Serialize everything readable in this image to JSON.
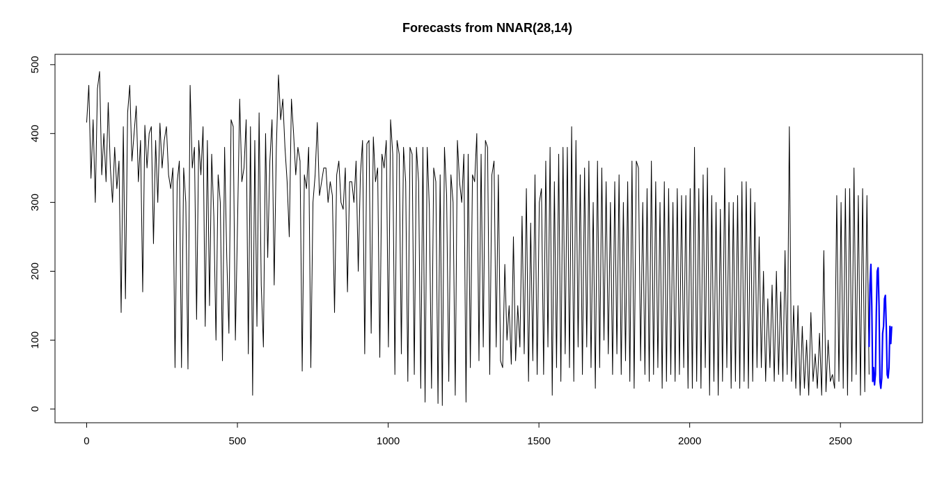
{
  "chart_data": {
    "type": "line",
    "title": "Forecasts from NNAR(28,14)",
    "xlabel": "",
    "ylabel": "",
    "xlim": [
      -105,
      2772
    ],
    "ylim": [
      -20,
      515
    ],
    "x_ticks": [
      0,
      500,
      1000,
      1500,
      2000,
      2500
    ],
    "y_ticks": [
      0,
      100,
      200,
      300,
      400,
      500
    ],
    "grid": false,
    "legend": "none",
    "series": [
      {
        "role": "observed",
        "color": "#000000",
        "x_start": 0,
        "x_step": 1,
        "values": [
          416,
          470,
          335,
          420,
          300,
          465,
          490,
          340,
          400,
          330,
          445,
          350,
          300,
          380,
          320,
          360,
          140,
          410,
          160,
          430,
          470,
          360,
          400,
          440,
          330,
          390,
          170,
          412,
          350,
          400,
          410,
          240,
          390,
          300,
          415,
          350,
          390,
          410,
          340,
          320,
          350,
          60,
          330,
          360,
          60,
          350,
          300,
          58,
          470,
          350,
          380,
          130,
          390,
          340,
          410,
          120,
          390,
          150,
          370,
          280,
          100,
          340,
          300,
          70,
          380,
          220,
          110,
          420,
          410,
          100,
          270,
          450,
          330,
          350,
          420,
          80,
          410,
          20,
          390,
          120,
          430,
          180,
          90,
          400,
          220,
          360,
          420,
          180,
          380,
          485,
          420,
          450,
          380,
          330,
          250,
          450,
          400,
          340,
          380,
          360,
          55,
          340,
          320,
          380,
          60,
          300,
          340,
          416,
          310,
          330,
          350,
          350,
          300,
          330,
          310,
          140,
          340,
          360,
          300,
          290,
          350,
          170,
          330,
          330,
          300,
          360,
          200,
          340,
          390,
          80,
          385,
          390,
          110,
          395,
          330,
          350,
          75,
          370,
          350,
          390,
          90,
          420,
          370,
          50,
          390,
          370,
          80,
          380,
          330,
          40,
          380,
          370,
          50,
          380,
          330,
          30,
          380,
          10,
          380,
          290,
          30,
          350,
          330,
          8,
          340,
          5,
          380,
          310,
          40,
          340,
          300,
          20,
          390,
          330,
          300,
          370,
          10,
          370,
          60,
          340,
          330,
          400,
          70,
          370,
          90,
          390,
          380,
          50,
          340,
          360,
          90,
          340,
          70,
          60,
          210,
          100,
          150,
          65,
          250,
          70,
          150,
          90,
          280,
          80,
          320,
          40,
          270,
          70,
          340,
          50,
          300,
          320,
          50,
          360,
          90,
          380,
          20,
          330,
          60,
          370,
          40,
          380,
          80,
          380,
          60,
          410,
          40,
          390,
          90,
          340,
          50,
          350,
          90,
          360,
          60,
          300,
          30,
          360,
          60,
          350,
          100,
          330,
          80,
          300,
          50,
          330,
          80,
          340,
          50,
          300,
          70,
          330,
          40,
          360,
          30,
          360,
          350,
          70,
          300,
          50,
          320,
          40,
          360,
          50,
          330,
          60,
          300,
          30,
          330,
          40,
          320,
          50,
          300,
          40,
          320,
          50,
          310,
          60,
          310,
          30,
          320,
          30,
          380,
          40,
          320,
          30,
          340,
          60,
          350,
          20,
          310,
          40,
          300,
          20,
          290,
          40,
          350,
          60,
          300,
          30,
          300,
          40,
          310,
          30,
          330,
          40,
          330,
          30,
          320,
          40,
          300,
          60,
          250,
          60,
          200,
          40,
          160,
          60,
          180,
          40,
          200,
          50,
          170,
          40,
          230,
          50,
          410,
          40,
          150,
          30,
          150,
          20,
          120,
          30,
          100,
          20,
          140,
          40,
          80,
          30,
          110,
          20,
          230,
          25,
          100,
          40,
          50,
          30,
          310,
          40,
          300,
          30,
          320,
          20,
          320,
          40,
          350,
          50,
          310,
          20,
          320,
          25,
          310,
          50
        ]
      },
      {
        "role": "forecast",
        "color": "#0000ff",
        "x_start": 2595,
        "x_step": 1,
        "values": [
          90,
          180,
          210,
          150,
          40,
          60,
          35,
          50,
          140,
          200,
          205,
          150,
          40,
          30,
          45,
          110,
          120,
          160,
          165,
          120,
          50,
          45,
          60,
          120,
          95,
          120
        ]
      }
    ]
  }
}
